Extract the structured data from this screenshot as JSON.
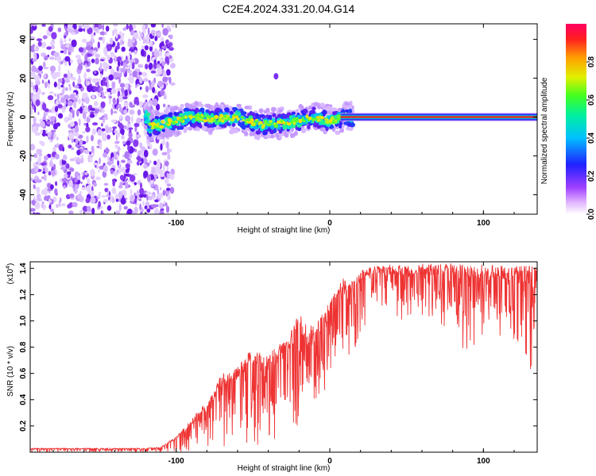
{
  "title": "C2E4.2024.331.20.04.G14",
  "colors": {
    "snr_line": "#ee3333",
    "background": "#ffffff",
    "scatter_noise": "#7b2cf0"
  },
  "chart_data": [
    {
      "type": "heatmap",
      "xlabel": "Height of straight line (km)",
      "ylabel": "Frequency (Hz)",
      "xlim": [
        -195,
        135
      ],
      "ylim": [
        -50,
        48
      ],
      "xticks": [
        -100,
        0,
        100
      ],
      "xtick_labels": [
        "-100",
        "0",
        "100"
      ],
      "yticks": [
        -40,
        -20,
        0,
        20,
        40
      ],
      "ytick_labels": [
        "-40",
        "-20",
        "0",
        "20",
        "40"
      ],
      "colorbar": {
        "label": "Normalized spectral amplitude",
        "range": [
          0.0,
          1.0
        ],
        "ticks": [
          0.0,
          0.2,
          0.4,
          0.6,
          0.8
        ],
        "tick_labels": [
          "0.0",
          "0.2",
          "0.4",
          "0.6",
          "0.8"
        ],
        "colormap": "rainbow (magenta-white to red)"
      },
      "regions": {
        "broad_noise": {
          "x_range": [
            -195,
            -108
          ],
          "freq_range": [
            -50,
            48
          ]
        },
        "scattered_signal": {
          "x_range": [
            -120,
            15
          ],
          "freq_range": [
            -10,
            8
          ]
        },
        "strong_tone": {
          "x_range": [
            15,
            135
          ],
          "frequency_hz": 0
        }
      },
      "ridge_points": [
        {
          "x": -118,
          "y": -5
        },
        {
          "x": -105,
          "y": -3
        },
        {
          "x": -90,
          "y": 0
        },
        {
          "x": -75,
          "y": -1
        },
        {
          "x": -60,
          "y": 0
        },
        {
          "x": -45,
          "y": -4
        },
        {
          "x": -30,
          "y": -3
        },
        {
          "x": -20,
          "y": -2
        },
        {
          "x": -10,
          "y": 0
        },
        {
          "x": 0,
          "y": -2
        },
        {
          "x": 10,
          "y": 0
        },
        {
          "x": 15,
          "y": 0
        },
        {
          "x": 50,
          "y": 0
        },
        {
          "x": 100,
          "y": 0
        },
        {
          "x": 135,
          "y": 0
        }
      ],
      "isolated_blobs": [
        {
          "x": -35,
          "y": 21
        }
      ]
    },
    {
      "type": "line",
      "xlabel": "Height of straight line (km)",
      "ylabel": "SNR (10 * v/v)",
      "y_multiplier": "(x10",
      "y_multiplier_exp": "4",
      "y_multiplier_close": ")",
      "xlim": [
        -195,
        135
      ],
      "ylim": [
        0.0,
        1.45
      ],
      "xticks": [
        -100,
        0,
        100
      ],
      "xtick_labels": [
        "-100",
        "0",
        "100"
      ],
      "yticks": [
        0.2,
        0.4,
        0.6,
        0.8,
        1.0,
        1.2,
        1.4
      ],
      "ytick_labels": [
        "0.2",
        "0.4",
        "0.6",
        "0.8",
        "1.0",
        "1.2",
        "1.4"
      ],
      "series": [
        {
          "x": [
            -195,
            -180,
            -160,
            -140,
            -120,
            -110,
            -100,
            -90,
            -80,
            -70,
            -60,
            -50,
            -40,
            -30,
            -20,
            -10,
            0,
            5,
            10,
            15,
            20,
            25,
            30,
            40,
            50,
            60,
            70,
            80,
            90,
            100,
            110,
            120,
            130,
            135
          ],
          "y_lo": [
            0.0,
            0.0,
            0.0,
            0.0,
            0.0,
            0.0,
            0.0,
            0.0,
            0.0,
            0.02,
            0.03,
            0.05,
            0.05,
            0.07,
            0.06,
            0.35,
            0.52,
            0.8,
            0.7,
            0.75,
            0.85,
            1.0,
            1.1,
            1.0,
            0.95,
            0.9,
            1.0,
            0.9,
            0.7,
            0.9,
            0.85,
            0.8,
            0.6,
            0.6
          ],
          "y_hi": [
            0.03,
            0.03,
            0.03,
            0.03,
            0.03,
            0.04,
            0.12,
            0.25,
            0.4,
            0.6,
            0.65,
            0.8,
            0.75,
            0.85,
            1.05,
            0.95,
            1.15,
            1.25,
            1.35,
            1.3,
            1.38,
            1.42,
            1.42,
            1.43,
            1.43,
            1.44,
            1.43,
            1.44,
            1.43,
            1.43,
            1.42,
            1.42,
            1.42,
            1.42
          ]
        }
      ]
    }
  ]
}
